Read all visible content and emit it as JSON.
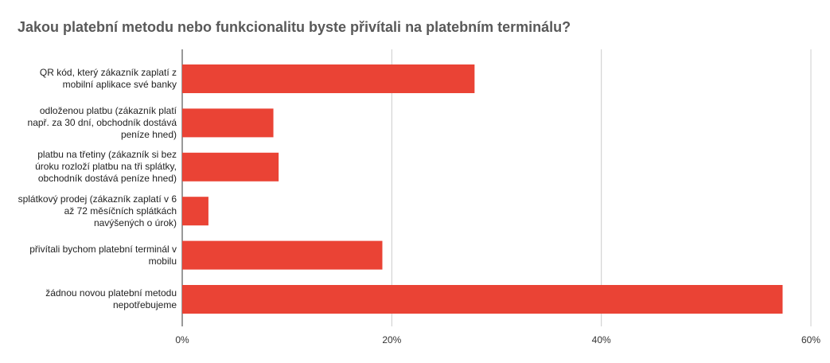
{
  "chart_data": {
    "type": "bar",
    "orientation": "horizontal",
    "title": "Jakou platební metodu nebo funkcionalitu byste přivítali na platebním terminálu?",
    "categories": [
      "QR kód, který zákazník zaplatí z mobilní aplikace své banky",
      "odloženou platbu (zákazník platí např. za 30 dní, obchodník dostává peníze hned)",
      "platbu na třetiny (zákazník si bez úroku rozloží platbu na tři splátky, obchodník dostává peníze hned)",
      "splátkový prodej (zákazník zaplatí v 6 až 72 měsíčních splátkách navýšených o úrok)",
      "přivítali bychom platební terminál v mobilu",
      "žádnou novou platební metodu nepotřebujeme"
    ],
    "values": [
      27.9,
      8.7,
      9.2,
      2.5,
      19.1,
      57.3
    ],
    "color": "#ea4335",
    "xlim": [
      0,
      60
    ],
    "xticks": [
      {
        "value": 0,
        "label": "0%"
      },
      {
        "value": 20,
        "label": "20%"
      },
      {
        "value": 40,
        "label": "40%"
      },
      {
        "value": 60,
        "label": "60%"
      }
    ],
    "grid": true
  }
}
